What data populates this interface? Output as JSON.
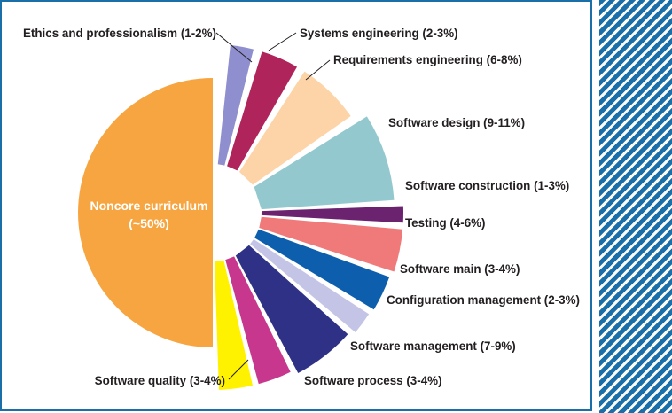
{
  "chart_data": {
    "type": "pie",
    "colors": {
      "frame": "#1a6fa8",
      "stripes": "#1a6fa8",
      "leader": "#231f20"
    },
    "slices": [
      {
        "label": "Noncore curriculum",
        "value_label": "(~50%)",
        "value": 50,
        "color": "#f7a540"
      },
      {
        "label": "Ethics and professionalism (1-2%)",
        "value": 1.5,
        "color": "#8f8fcf"
      },
      {
        "label": "Systems engineering (2-3%)",
        "value": 2.5,
        "color": "#b0245c"
      },
      {
        "label": "Requirements engineering (6-8%)",
        "value": 7,
        "color": "#fdd4a8"
      },
      {
        "label": "Software design (9-11%)",
        "value": 10,
        "color": "#93c9ce"
      },
      {
        "label": "Software construction (1-3%)",
        "value": 2,
        "color": "#6b2370"
      },
      {
        "label": "Testing (4-6%)",
        "value": 5,
        "color": "#f07a7a"
      },
      {
        "label": "Software main (3-4%)",
        "value": 3.5,
        "color": "#0d5fad"
      },
      {
        "label": "Configuration management (2-3%)",
        "value": 2.5,
        "color": "#c4c4e6"
      },
      {
        "label": "Software management (7-9%)",
        "value": 8,
        "color": "#2e3185"
      },
      {
        "label": "Software process (3-4%)",
        "value": 3.5,
        "color": "#c8378e"
      },
      {
        "label": "Software quality (3-4%)",
        "value": 3.5,
        "color": "#fff200"
      }
    ]
  }
}
